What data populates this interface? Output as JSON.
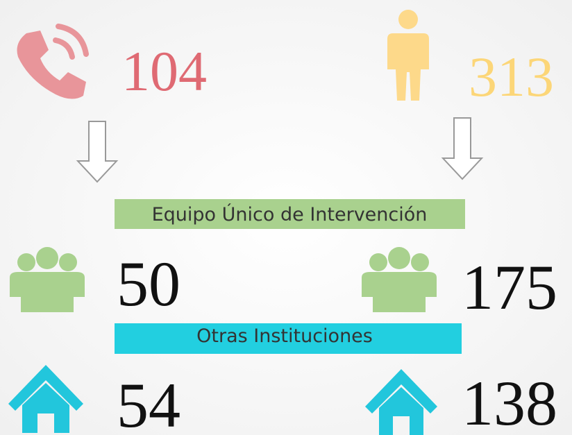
{
  "left": {
    "calls": 104,
    "team": 50,
    "institutions": 54
  },
  "right": {
    "people": 313,
    "team": 175,
    "institutions": 138
  },
  "labels": {
    "team": "Equipo Único de Intervención",
    "institutions": "Otras Instituciones"
  }
}
